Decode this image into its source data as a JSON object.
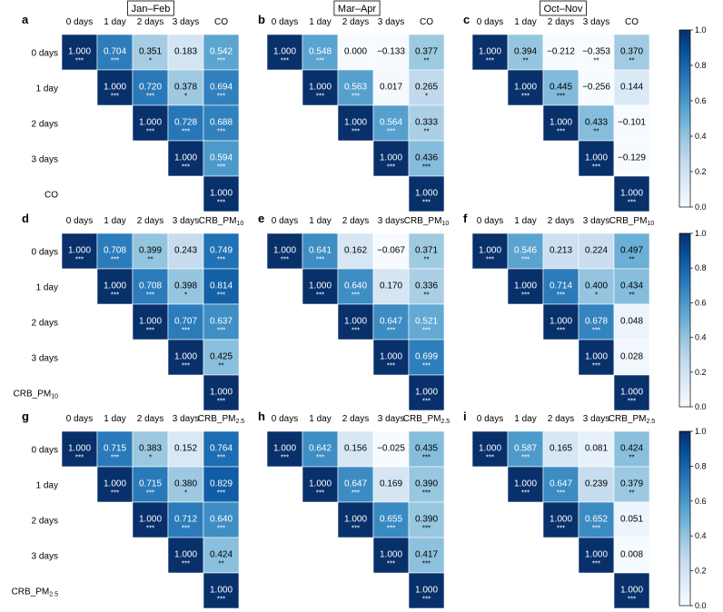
{
  "seasons": [
    "Jan–Feb",
    "Mar–Apr",
    "Oct–Nov"
  ],
  "colorbar": {
    "ticks": [
      "0.0",
      "0.2",
      "0.4",
      "0.6",
      "0.8",
      "1.0"
    ],
    "min": 0,
    "max": 1
  },
  "chart_data": [
    {
      "type": "heatmap",
      "letter": "a",
      "columns": [
        "0 days",
        "1 day",
        "2 days",
        "3 days",
        "CO"
      ],
      "rows": [
        "0 days",
        "1 day",
        "2 days",
        "3 days",
        "CO"
      ],
      "values": [
        [
          1.0,
          0.704,
          0.351,
          0.183,
          0.542
        ],
        [
          null,
          1.0,
          0.72,
          0.378,
          0.694
        ],
        [
          null,
          null,
          1.0,
          0.728,
          0.688
        ],
        [
          null,
          null,
          null,
          1.0,
          0.594
        ],
        [
          null,
          null,
          null,
          null,
          1.0
        ]
      ],
      "labels": [
        [
          "1.000",
          "0.704",
          "0.351",
          "0.183",
          "0.542"
        ],
        [
          null,
          "1.000",
          "0.720",
          "0.378",
          "0.694"
        ],
        [
          null,
          null,
          "1.000",
          "0.728",
          "0.688"
        ],
        [
          null,
          null,
          null,
          "1.000",
          "0.594"
        ],
        [
          null,
          null,
          null,
          null,
          "1.000"
        ]
      ],
      "significance": [
        [
          "***",
          "***",
          "*",
          "",
          "***"
        ],
        [
          null,
          "***",
          "***",
          "*",
          "***"
        ],
        [
          null,
          null,
          "***",
          "***",
          "***"
        ],
        [
          null,
          null,
          null,
          "***",
          "***"
        ],
        [
          null,
          null,
          null,
          null,
          "***"
        ]
      ]
    },
    {
      "type": "heatmap",
      "letter": "b",
      "columns": [
        "0 days",
        "1 day",
        "2 days",
        "3 days",
        "CO"
      ],
      "rows": [],
      "values": [
        [
          1.0,
          0.548,
          0.0,
          -0.133,
          0.377
        ],
        [
          null,
          1.0,
          0.563,
          0.017,
          0.265
        ],
        [
          null,
          null,
          1.0,
          0.564,
          0.333
        ],
        [
          null,
          null,
          null,
          1.0,
          0.436
        ],
        [
          null,
          null,
          null,
          null,
          1.0
        ]
      ],
      "labels": [
        [
          "1.000",
          "0.548",
          "0.000",
          "−0.133",
          "0.377"
        ],
        [
          null,
          "1.000",
          "0.563",
          "0.017",
          "0.265"
        ],
        [
          null,
          null,
          "1.000",
          "0.564",
          "0.333"
        ],
        [
          null,
          null,
          null,
          "1.000",
          "0.436"
        ],
        [
          null,
          null,
          null,
          null,
          "1.000"
        ]
      ],
      "significance": [
        [
          "***",
          "***",
          "",
          "",
          "**"
        ],
        [
          null,
          "***",
          "***",
          "",
          "*"
        ],
        [
          null,
          null,
          "***",
          "***",
          "**"
        ],
        [
          null,
          null,
          null,
          "***",
          "***"
        ],
        [
          null,
          null,
          null,
          null,
          "***"
        ]
      ]
    },
    {
      "type": "heatmap",
      "letter": "c",
      "columns": [
        "0 days",
        "1 day",
        "2 days",
        "3 days",
        "CO"
      ],
      "rows": [],
      "values": [
        [
          1.0,
          0.394,
          -0.212,
          -0.353,
          0.37
        ],
        [
          null,
          1.0,
          0.445,
          -0.256,
          0.144
        ],
        [
          null,
          null,
          1.0,
          0.433,
          -0.101
        ],
        [
          null,
          null,
          null,
          1.0,
          -0.129
        ],
        [
          null,
          null,
          null,
          null,
          1.0
        ]
      ],
      "labels": [
        [
          "1.000",
          "0.394",
          "−0.212",
          "−0.353",
          "0.370"
        ],
        [
          null,
          "1.000",
          "0.445",
          "−0.256",
          "0.144"
        ],
        [
          null,
          null,
          "1.000",
          "0.433",
          "−0.101"
        ],
        [
          null,
          null,
          null,
          "1.000",
          "−0.129"
        ],
        [
          null,
          null,
          null,
          null,
          "1.000"
        ]
      ],
      "significance": [
        [
          "***",
          "**",
          "",
          "**",
          "**"
        ],
        [
          null,
          "***",
          "***",
          "",
          ""
        ],
        [
          null,
          null,
          "***",
          "**",
          ""
        ],
        [
          null,
          null,
          null,
          "***",
          ""
        ],
        [
          null,
          null,
          null,
          null,
          "***"
        ]
      ]
    },
    {
      "type": "heatmap",
      "letter": "d",
      "columns": [
        "0 days",
        "1 day",
        "2 days",
        "3 days",
        "CRB_PM10"
      ],
      "rows": [
        "0 days",
        "1 day",
        "2 days",
        "3 days",
        "CRB_PM10"
      ],
      "values": [
        [
          1.0,
          0.708,
          0.399,
          0.243,
          0.749
        ],
        [
          null,
          1.0,
          0.708,
          0.398,
          0.814
        ],
        [
          null,
          null,
          1.0,
          0.707,
          0.637
        ],
        [
          null,
          null,
          null,
          1.0,
          0.425
        ],
        [
          null,
          null,
          null,
          null,
          1.0
        ]
      ],
      "labels": [
        [
          "1.000",
          "0.708",
          "0.399",
          "0.243",
          "0.749"
        ],
        [
          null,
          "1.000",
          "0.708",
          "0.398",
          "0.814"
        ],
        [
          null,
          null,
          "1.000",
          "0.707",
          "0.637"
        ],
        [
          null,
          null,
          null,
          "1.000",
          "0.425"
        ],
        [
          null,
          null,
          null,
          null,
          "1.000"
        ]
      ],
      "significance": [
        [
          "***",
          "***",
          "**",
          "",
          "***"
        ],
        [
          null,
          "***",
          "***",
          "*",
          "***"
        ],
        [
          null,
          null,
          "***",
          "***",
          "***"
        ],
        [
          null,
          null,
          null,
          "***",
          "**"
        ],
        [
          null,
          null,
          null,
          null,
          "***"
        ]
      ]
    },
    {
      "type": "heatmap",
      "letter": "e",
      "columns": [
        "0 days",
        "1 day",
        "2 days",
        "3 days",
        "CRB_PM10"
      ],
      "rows": [],
      "values": [
        [
          1.0,
          0.641,
          0.162,
          -0.067,
          0.371
        ],
        [
          null,
          1.0,
          0.64,
          0.17,
          0.336
        ],
        [
          null,
          null,
          1.0,
          0.647,
          0.521
        ],
        [
          null,
          null,
          null,
          1.0,
          0.699
        ],
        [
          null,
          null,
          null,
          null,
          1.0
        ]
      ],
      "labels": [
        [
          "1.000",
          "0.641",
          "0.162",
          "−0.067",
          "0.371"
        ],
        [
          null,
          "1.000",
          "0.640",
          "0.170",
          "0.336"
        ],
        [
          null,
          null,
          "1.000",
          "0.647",
          "0.521"
        ],
        [
          null,
          null,
          null,
          "1.000",
          "0.699"
        ],
        [
          null,
          null,
          null,
          null,
          "1.000"
        ]
      ],
      "significance": [
        [
          "***",
          "***",
          "",
          "",
          "**"
        ],
        [
          null,
          "***",
          "***",
          "",
          "**"
        ],
        [
          null,
          null,
          "***",
          "***",
          "***"
        ],
        [
          null,
          null,
          null,
          "***",
          "***"
        ],
        [
          null,
          null,
          null,
          null,
          "***"
        ]
      ]
    },
    {
      "type": "heatmap",
      "letter": "f",
      "columns": [
        "0 days",
        "1 day",
        "2 days",
        "3 days",
        "CRB_PM10"
      ],
      "rows": [],
      "values": [
        [
          1.0,
          0.546,
          0.213,
          0.224,
          0.497
        ],
        [
          null,
          1.0,
          0.714,
          0.4,
          0.434
        ],
        [
          null,
          null,
          1.0,
          0.678,
          0.048
        ],
        [
          null,
          null,
          null,
          1.0,
          0.028
        ],
        [
          null,
          null,
          null,
          null,
          1.0
        ]
      ],
      "labels": [
        [
          "1.000",
          "0.546",
          "0.213",
          "0.224",
          "0.497"
        ],
        [
          null,
          "1.000",
          "0.714",
          "0.400",
          "0.434"
        ],
        [
          null,
          null,
          "1.000",
          "0.678",
          "0.048"
        ],
        [
          null,
          null,
          null,
          "1.000",
          "0.028"
        ],
        [
          null,
          null,
          null,
          null,
          "1.000"
        ]
      ],
      "significance": [
        [
          "***",
          "***",
          "",
          "",
          "**"
        ],
        [
          null,
          "***",
          "***",
          "*",
          "**"
        ],
        [
          null,
          null,
          "***",
          "***",
          ""
        ],
        [
          null,
          null,
          null,
          "***",
          ""
        ],
        [
          null,
          null,
          null,
          null,
          "***"
        ]
      ]
    },
    {
      "type": "heatmap",
      "letter": "g",
      "columns": [
        "0 days",
        "1 day",
        "2 days",
        "3 days",
        "CRB_PM2.5"
      ],
      "rows": [
        "0 days",
        "1 day",
        "2 days",
        "3 days",
        "CRB_PM2.5"
      ],
      "values": [
        [
          1.0,
          0.715,
          0.383,
          0.152,
          0.764
        ],
        [
          null,
          1.0,
          0.715,
          0.38,
          0.829
        ],
        [
          null,
          null,
          1.0,
          0.712,
          0.64
        ],
        [
          null,
          null,
          null,
          1.0,
          0.424
        ],
        [
          null,
          null,
          null,
          null,
          1.0
        ]
      ],
      "labels": [
        [
          "1.000",
          "0.715",
          "0.383",
          "0.152",
          "0.764"
        ],
        [
          null,
          "1.000",
          "0.715",
          "0.380",
          "0.829"
        ],
        [
          null,
          null,
          "1.000",
          "0.712",
          "0.640"
        ],
        [
          null,
          null,
          null,
          "1.000",
          "0.424"
        ],
        [
          null,
          null,
          null,
          null,
          "1.000"
        ]
      ],
      "significance": [
        [
          "***",
          "***",
          "*",
          "",
          "***"
        ],
        [
          null,
          "***",
          "***",
          "*",
          "***"
        ],
        [
          null,
          null,
          "***",
          "***",
          "***"
        ],
        [
          null,
          null,
          null,
          "***",
          "**"
        ],
        [
          null,
          null,
          null,
          null,
          "***"
        ]
      ]
    },
    {
      "type": "heatmap",
      "letter": "h",
      "columns": [
        "0 days",
        "1 day",
        "2 days",
        "3 days",
        "CRB_PM2.5"
      ],
      "rows": [],
      "values": [
        [
          1.0,
          0.642,
          0.156,
          -0.025,
          0.435
        ],
        [
          null,
          1.0,
          0.647,
          0.169,
          0.39
        ],
        [
          null,
          null,
          1.0,
          0.655,
          0.39
        ],
        [
          null,
          null,
          null,
          1.0,
          0.417
        ],
        [
          null,
          null,
          null,
          null,
          1.0
        ]
      ],
      "labels": [
        [
          "1.000",
          "0.642",
          "0.156",
          "−0.025",
          "0.435"
        ],
        [
          null,
          "1.000",
          "0.647",
          "0.169",
          "0.390"
        ],
        [
          null,
          null,
          "1.000",
          "0.655",
          "0.390"
        ],
        [
          null,
          null,
          null,
          "1.000",
          "0.417"
        ],
        [
          null,
          null,
          null,
          null,
          "1.000"
        ]
      ],
      "significance": [
        [
          "***",
          "***",
          "",
          "",
          "***"
        ],
        [
          null,
          "***",
          "***",
          "",
          "***"
        ],
        [
          null,
          null,
          "***",
          "***",
          "***"
        ],
        [
          null,
          null,
          null,
          "***",
          "***"
        ],
        [
          null,
          null,
          null,
          null,
          "***"
        ]
      ]
    },
    {
      "type": "heatmap",
      "letter": "i",
      "columns": [
        "0 days",
        "1 day",
        "2 days",
        "3 days",
        "CRB_PM2.5"
      ],
      "rows": [],
      "values": [
        [
          1.0,
          0.587,
          0.165,
          0.081,
          0.424
        ],
        [
          null,
          1.0,
          0.647,
          0.239,
          0.379
        ],
        [
          null,
          null,
          1.0,
          0.652,
          0.051
        ],
        [
          null,
          null,
          null,
          1.0,
          0.008
        ],
        [
          null,
          null,
          null,
          null,
          1.0
        ]
      ],
      "labels": [
        [
          "1.000",
          "0.587",
          "0.165",
          "0.081",
          "0.424"
        ],
        [
          null,
          "1.000",
          "0.647",
          "0.239",
          "0.379"
        ],
        [
          null,
          null,
          "1.000",
          "0.652",
          "0.051"
        ],
        [
          null,
          null,
          null,
          "1.000",
          "0.008"
        ],
        [
          null,
          null,
          null,
          null,
          "1.000"
        ]
      ],
      "significance": [
        [
          "***",
          "***",
          "",
          "",
          "**"
        ],
        [
          null,
          "***",
          "***",
          "",
          "**"
        ],
        [
          null,
          null,
          "***",
          "***",
          ""
        ],
        [
          null,
          null,
          null,
          "***",
          ""
        ],
        [
          null,
          null,
          null,
          null,
          "***"
        ]
      ]
    }
  ]
}
